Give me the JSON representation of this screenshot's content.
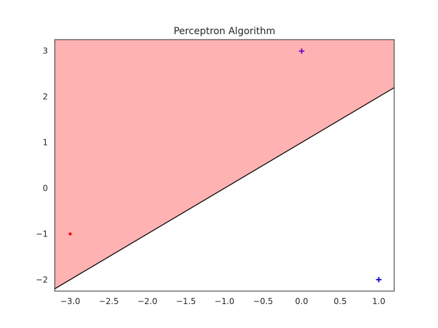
{
  "chart_data": {
    "type": "scatter",
    "title": "Perceptron Algorithm",
    "xlabel": "",
    "ylabel": "",
    "xlim": [
      -3.2,
      1.2
    ],
    "ylim": [
      -2.25,
      3.25
    ],
    "x_ticks": [
      -3.0,
      -2.5,
      -2.0,
      -1.5,
      -1.0,
      -0.5,
      0.0,
      0.5,
      1.0
    ],
    "x_tick_labels": [
      "−3.0",
      "−2.5",
      "−2.0",
      "−1.5",
      "−1.0",
      "−0.5",
      "0.0",
      "0.5",
      "1.0"
    ],
    "y_ticks": [
      -2,
      -1,
      0,
      1,
      2,
      3
    ],
    "y_tick_labels": [
      "−2",
      "−1",
      "0",
      "1",
      "2",
      "3"
    ],
    "grid": false,
    "legend": "none",
    "decision_boundary": {
      "slope": 1.0,
      "intercept": 1.0,
      "region_above_color": "#ffb2b2",
      "line_color": "#000000"
    },
    "points": [
      {
        "x": -3.0,
        "y": -1.0,
        "marker": "dot",
        "color": "#ff0000"
      },
      {
        "x": 0.0,
        "y": 3.0,
        "marker": "plus",
        "color": "#6a00c8"
      },
      {
        "x": 1.0,
        "y": -2.0,
        "marker": "plus",
        "color": "#0000cc"
      }
    ]
  }
}
